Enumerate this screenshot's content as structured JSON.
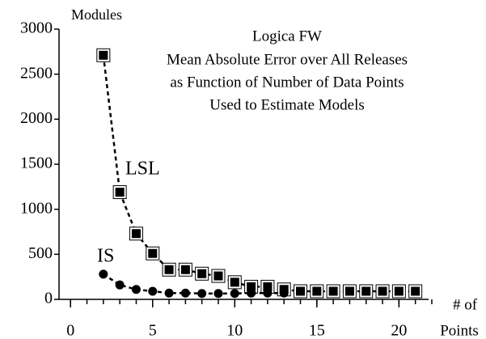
{
  "chart_data": {
    "type": "line",
    "title": [
      "Logica FW",
      "Mean Absolute Error over All Releases",
      "as Function of Number of Data Points",
      "Used to Estimate Models"
    ],
    "y_label": "Modules",
    "x_label": [
      "# of",
      "Points"
    ],
    "series": [
      {
        "name": "LSL",
        "color": "#000000",
        "marker": "square",
        "x": [
          2,
          3,
          4,
          5,
          6,
          7,
          8,
          9,
          10,
          11,
          12,
          13,
          14,
          15,
          16,
          17,
          18,
          19,
          20,
          21
        ],
        "values": [
          2710,
          1190,
          730,
          510,
          330,
          330,
          285,
          260,
          190,
          140,
          140,
          110,
          90,
          90,
          90,
          90,
          90,
          90,
          90,
          90
        ]
      },
      {
        "name": "IS",
        "color": "#000000",
        "marker": "circle",
        "x": [
          2,
          3,
          4,
          5,
          6,
          7,
          8,
          9,
          10,
          11,
          12,
          13
        ],
        "values": [
          280,
          160,
          110,
          90,
          70,
          70,
          65,
          65,
          65,
          70,
          70,
          70
        ]
      }
    ],
    "xlim": [
      -0.7,
      22.1
    ],
    "xticks": [
      0,
      5,
      10,
      15,
      20
    ],
    "xminor_step": 1,
    "ylim": [
      0,
      3000
    ],
    "yticks": [
      0,
      500,
      1000,
      1500,
      2000,
      2500,
      3000
    ],
    "line_style": "dashed"
  }
}
